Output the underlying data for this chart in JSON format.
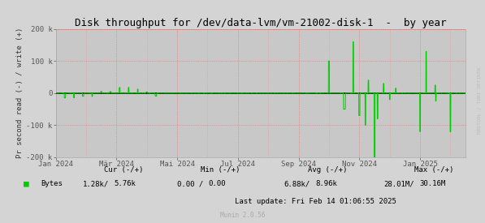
{
  "title": "Disk throughput for /dev/data-lvm/vm-21002-disk-1  -  by year",
  "ylabel": "Pr second read (-) / write (+)",
  "bg_color": "#d4d4d4",
  "plot_bg_color": "#c8c8c8",
  "line_color": "#00cc00",
  "ylim": [
    -200000,
    200000
  ],
  "yticks": [
    -200000,
    -100000,
    0,
    100000,
    200000
  ],
  "ytick_labels": [
    "-200 k",
    "-100 k",
    "0",
    "100 k",
    "200 k"
  ],
  "xlabel_ticks": [
    "Jan 2024",
    "Mär 2024",
    "Mai 2024",
    "Jul 2024",
    "Sep 2024",
    "Nov 2024",
    "Jan 2025"
  ],
  "legend_label": "Bytes",
  "cur_neg": "1.28k/",
  "cur_pos": "5.76k",
  "min_neg": "0.00 /",
  "min_pos": "0.00",
  "avg_neg": "6.88k/",
  "avg_pos": "8.96k",
  "max_neg": "28.01M/",
  "max_pos": "30.16M",
  "last_update": "Last update: Fri Feb 14 01:06:55 2025",
  "munin_version": "Munin 2.0.56",
  "watermark": "RRDTOOL / TOBI OETIKER",
  "title_fontsize": 9,
  "axis_fontsize": 6.5,
  "legend_fontsize": 6.5
}
